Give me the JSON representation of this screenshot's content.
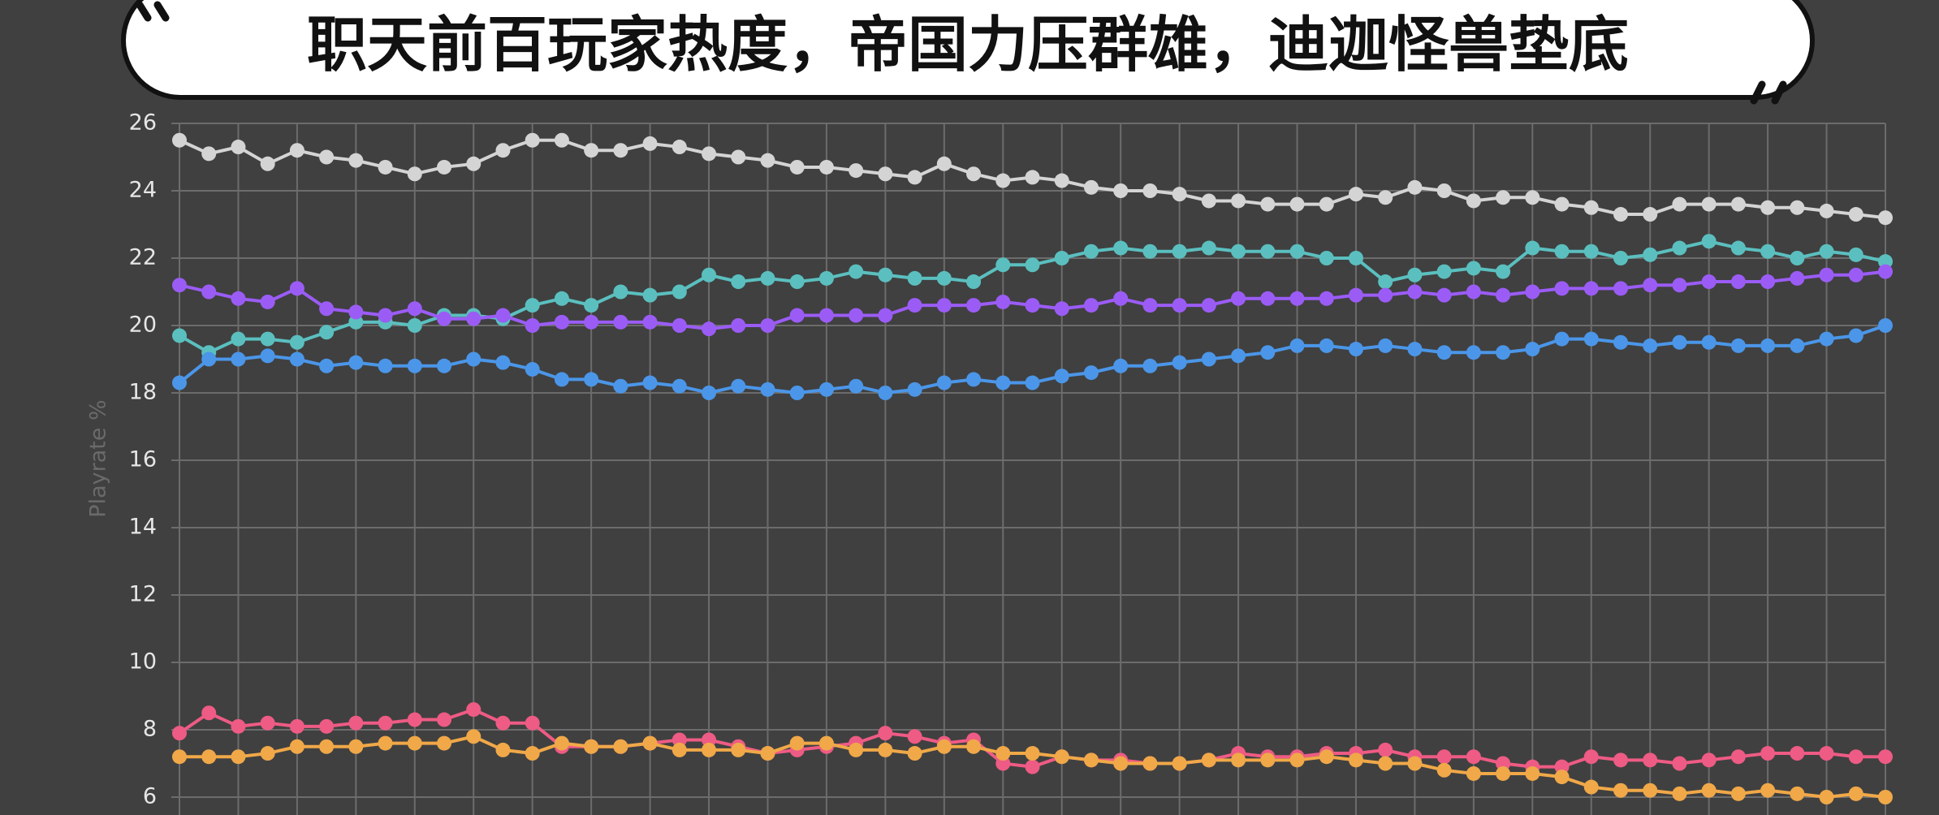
{
  "chart_data": {
    "type": "line",
    "title": "职天前百玩家热度，帝国力压群雄，迪迦怪兽垫底",
    "ylabel": "Playrate %",
    "ylim": [
      6,
      26
    ],
    "yticks": [
      6,
      8,
      10,
      12,
      14,
      16,
      18,
      20,
      22,
      24,
      26
    ],
    "grid": true,
    "series": [
      {
        "color": "#d4d4d4",
        "values": [
          25.5,
          25.1,
          25.3,
          24.8,
          25.2,
          25.0,
          24.9,
          24.7,
          24.5,
          24.7,
          24.8,
          25.2,
          25.5,
          25.5,
          25.2,
          25.2,
          25.4,
          25.3,
          25.1,
          25.0,
          24.9,
          24.7,
          24.7,
          24.6,
          24.5,
          24.4,
          24.8,
          24.5,
          24.3,
          24.4,
          24.3,
          24.1,
          24.0,
          24.0,
          23.9,
          23.7,
          23.7,
          23.6,
          23.6,
          23.6,
          23.9,
          23.8,
          24.1,
          24.0,
          23.7,
          23.8,
          23.8,
          23.6,
          23.5,
          23.3,
          23.3,
          23.6,
          23.6,
          23.6,
          23.5,
          23.5,
          23.4,
          23.3,
          23.2
        ]
      },
      {
        "color": "#5bbfbf",
        "values": [
          19.7,
          19.2,
          19.6,
          19.6,
          19.5,
          19.8,
          20.1,
          20.1,
          20.0,
          20.3,
          20.3,
          20.2,
          20.6,
          20.8,
          20.6,
          21.0,
          20.9,
          21.0,
          21.5,
          21.3,
          21.4,
          21.3,
          21.4,
          21.6,
          21.5,
          21.4,
          21.4,
          21.3,
          21.8,
          21.8,
          22.0,
          22.2,
          22.3,
          22.2,
          22.2,
          22.3,
          22.2,
          22.2,
          22.2,
          22.0,
          22.0,
          21.3,
          21.5,
          21.6,
          21.7,
          21.6,
          22.3,
          22.2,
          22.2,
          22.0,
          22.1,
          22.3,
          22.5,
          22.3,
          22.2,
          22.0,
          22.2,
          22.1,
          21.9
        ]
      },
      {
        "color": "#9b5cf6",
        "values": [
          21.2,
          21.0,
          20.8,
          20.7,
          21.1,
          20.5,
          20.4,
          20.3,
          20.5,
          20.2,
          20.2,
          20.3,
          20.0,
          20.1,
          20.1,
          20.1,
          20.1,
          20.0,
          19.9,
          20.0,
          20.0,
          20.3,
          20.3,
          20.3,
          20.3,
          20.6,
          20.6,
          20.6,
          20.7,
          20.6,
          20.5,
          20.6,
          20.8,
          20.6,
          20.6,
          20.6,
          20.8,
          20.8,
          20.8,
          20.8,
          20.9,
          20.9,
          21.0,
          20.9,
          21.0,
          20.9,
          21.0,
          21.1,
          21.1,
          21.1,
          21.2,
          21.2,
          21.3,
          21.3,
          21.3,
          21.4,
          21.5,
          21.5,
          21.6
        ]
      },
      {
        "color": "#4b96e8",
        "values": [
          18.3,
          19.0,
          19.0,
          19.1,
          19.0,
          18.8,
          18.9,
          18.8,
          18.8,
          18.8,
          19.0,
          18.9,
          18.7,
          18.4,
          18.4,
          18.2,
          18.3,
          18.2,
          18.0,
          18.2,
          18.1,
          18.0,
          18.1,
          18.2,
          18.0,
          18.1,
          18.3,
          18.4,
          18.3,
          18.3,
          18.5,
          18.6,
          18.8,
          18.8,
          18.9,
          19.0,
          19.1,
          19.2,
          19.4,
          19.4,
          19.3,
          19.4,
          19.3,
          19.2,
          19.2,
          19.2,
          19.3,
          19.6,
          19.6,
          19.5,
          19.4,
          19.5,
          19.5,
          19.4,
          19.4,
          19.4,
          19.6,
          19.7,
          20.0
        ]
      },
      {
        "color": "#ee5b84",
        "values": [
          7.9,
          8.5,
          8.1,
          8.2,
          8.1,
          8.1,
          8.2,
          8.2,
          8.3,
          8.3,
          8.6,
          8.2,
          8.2,
          7.5,
          7.5,
          7.5,
          7.6,
          7.7,
          7.7,
          7.5,
          7.3,
          7.4,
          7.5,
          7.6,
          7.9,
          7.8,
          7.6,
          7.7,
          7.0,
          6.9,
          7.2,
          7.1,
          7.1,
          7.0,
          7.0,
          7.1,
          7.3,
          7.2,
          7.2,
          7.3,
          7.3,
          7.4,
          7.2,
          7.2,
          7.2,
          7.0,
          6.9,
          6.9,
          7.2,
          7.1,
          7.1,
          7.0,
          7.1,
          7.2,
          7.3,
          7.3,
          7.3,
          7.2,
          7.2
        ]
      },
      {
        "color": "#f0a848",
        "values": [
          7.2,
          7.2,
          7.2,
          7.3,
          7.5,
          7.5,
          7.5,
          7.6,
          7.6,
          7.6,
          7.8,
          7.4,
          7.3,
          7.6,
          7.5,
          7.5,
          7.6,
          7.4,
          7.4,
          7.4,
          7.3,
          7.6,
          7.6,
          7.4,
          7.4,
          7.3,
          7.5,
          7.5,
          7.3,
          7.3,
          7.2,
          7.1,
          7.0,
          7.0,
          7.0,
          7.1,
          7.1,
          7.1,
          7.1,
          7.2,
          7.1,
          7.0,
          7.0,
          6.8,
          6.7,
          6.7,
          6.7,
          6.6,
          6.3,
          6.2,
          6.2,
          6.1,
          6.2,
          6.1,
          6.2,
          6.1,
          6.0,
          6.1,
          6.0
        ]
      }
    ]
  }
}
